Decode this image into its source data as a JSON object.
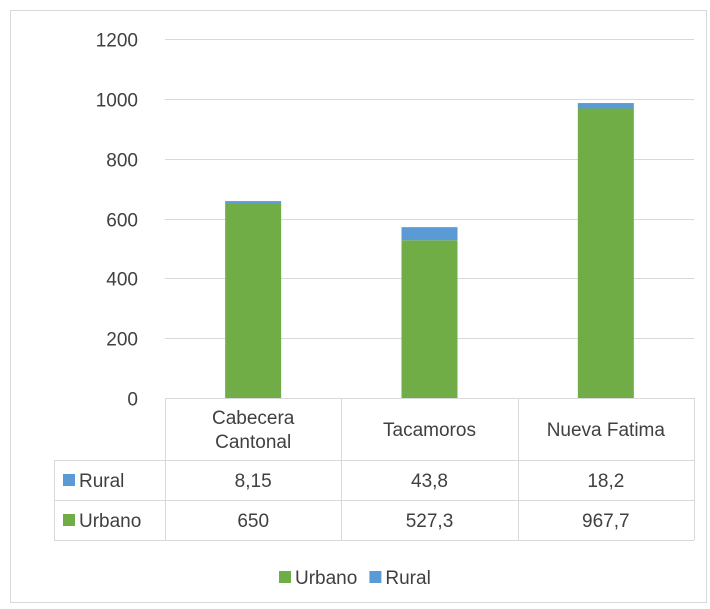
{
  "chart_data": {
    "type": "bar",
    "stacked": true,
    "categories": [
      "Cabecera Cantonal",
      "Tacamoros",
      "Nueva Fatima"
    ],
    "category_lines": [
      [
        "Cabecera",
        "Cantonal"
      ],
      [
        "Tacamoros"
      ],
      [
        "Nueva Fatima"
      ]
    ],
    "series": [
      {
        "name": "Urbano",
        "color": "#70ad47",
        "values": [
          650,
          527.3,
          967.7
        ],
        "display": [
          "650",
          "527,3",
          "967,7"
        ]
      },
      {
        "name": "Rural",
        "color": "#5b9bd5",
        "values": [
          8.15,
          43.8,
          18.2
        ],
        "display": [
          "8,15",
          "43,8",
          "18,2"
        ]
      }
    ],
    "data_table_rows": [
      "Rural",
      "Urbano"
    ],
    "yticks": [
      0,
      200,
      400,
      600,
      800,
      1000,
      1200
    ],
    "ylim": [
      0,
      1200
    ],
    "grid": true,
    "legend_position": "bottom",
    "data_table": true,
    "title": "",
    "xlabel": "",
    "ylabel": ""
  }
}
